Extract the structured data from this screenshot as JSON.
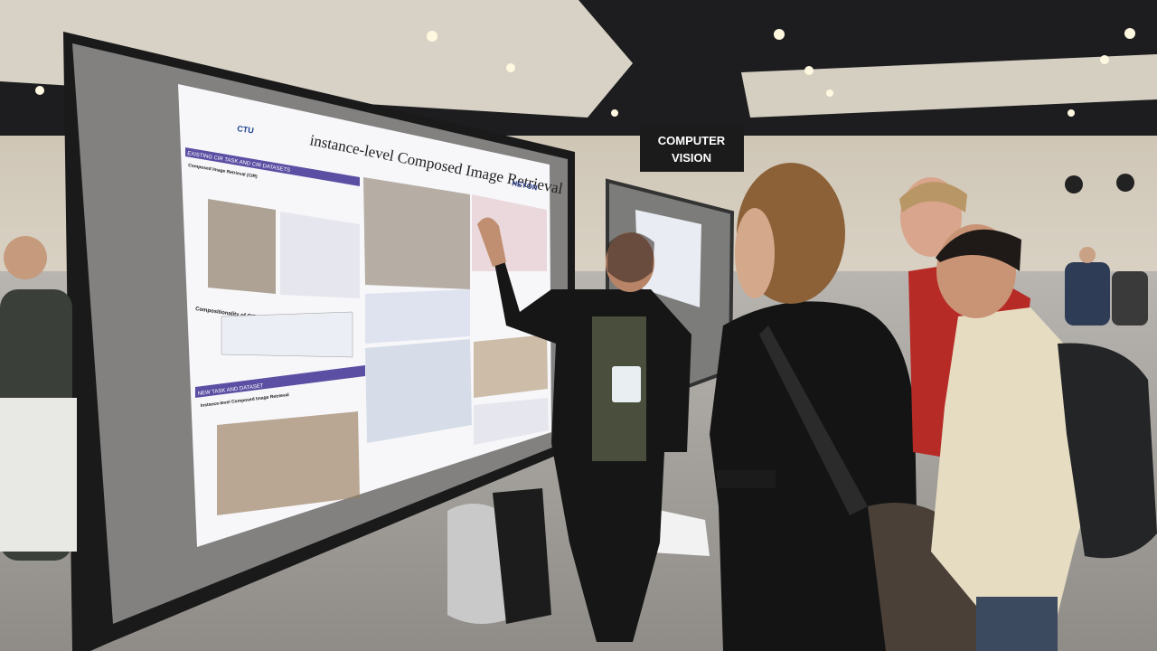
{
  "sign": {
    "lines": [
      "COMPUTER",
      "VISION"
    ]
  },
  "poster": {
    "logo": "CTU",
    "title": "instance-level Composed Image Retrieval",
    "sections": [
      "EXISTING CIR TASK AND CIR DATASETS",
      "Composed Image Retrieval (CIR)",
      "Compositionality of CIR",
      "NEW TASK AND DATASET",
      "Instance-level Composed Image Retrieval"
    ],
    "brand": "HEYON"
  }
}
